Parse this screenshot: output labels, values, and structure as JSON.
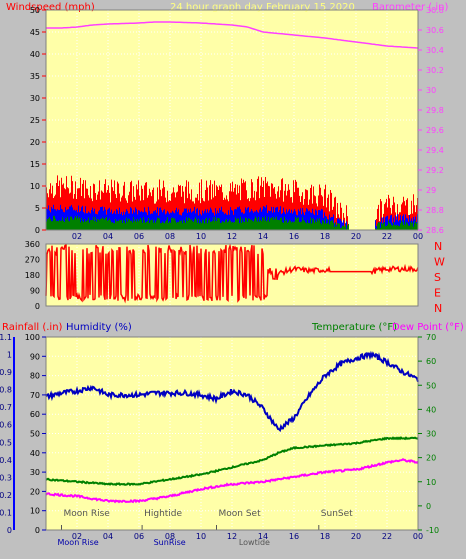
{
  "header": {
    "wind_title": "Windspeed (mph)",
    "center_title": "24 hour graph day   February 15 2020",
    "baro_title": "Barometer (.in)"
  },
  "colors": {
    "background": "#c0c0c0",
    "plot_background": "#ffffa8",
    "wind_color": "#ff0000",
    "gust_color": "#0000ff",
    "wind_low_color": "#008000",
    "barometer_color": "#ff40ff",
    "humidity_color": "#0000c0",
    "temperature_color": "#008000",
    "dewpoint_color": "#ff00ff",
    "rain_color": "#ff0000",
    "annotation_color": "#555555"
  },
  "x_ticks": [
    "02",
    "04",
    "06",
    "08",
    "10",
    "12",
    "14",
    "16",
    "18",
    "20",
    "22",
    "00"
  ],
  "direction_labels": [
    "N",
    "W",
    "S",
    "E",
    "N"
  ],
  "bottom": {
    "rain_title": "Rainfall (.in)",
    "humidity_title": "Humidity (%)",
    "temperature_title": "Temperature (°F)",
    "dewpoint_title": "Dew Point (°F)"
  },
  "annotations": [
    {
      "label": "Moon Rise",
      "hour": 1.0
    },
    {
      "label": "Hightide",
      "hour": 6.2
    },
    {
      "label": "Moon Set",
      "hour": 11.0
    },
    {
      "label": "SunSet",
      "hour": 17.6
    }
  ],
  "annotations_low": [
    {
      "label": "Moon Rise",
      "hour": 1.0
    },
    {
      "label": "Lowtide",
      "hour": 12.7
    },
    {
      "label": "SunRise",
      "hour": 7.2
    }
  ],
  "chart_data": [
    {
      "type": "line",
      "xlabel": "",
      "x_range": [
        0,
        24
      ],
      "y_left": {
        "label": "Windspeed (mph)",
        "range": [
          0,
          50
        ],
        "ticks": [
          0,
          5,
          10,
          15,
          20,
          25,
          30,
          35,
          40,
          45,
          50
        ]
      },
      "y_right": {
        "label": "Barometer (.in)",
        "range": [
          28.6,
          30.8
        ],
        "ticks": [
          "28.6",
          "28.8",
          "29",
          "29.2",
          "29.4",
          "29.6",
          "29.8",
          "30",
          "30.2",
          "30.4",
          "30.6",
          "30.8"
        ]
      },
      "series": [
        {
          "name": "Windspeed (mph)",
          "axis": "left",
          "hours": [
            0,
            2,
            4,
            6,
            8,
            10,
            12,
            14,
            16,
            18,
            19,
            20,
            21,
            22,
            23,
            24
          ],
          "values": [
            7,
            7,
            6,
            6,
            6,
            6,
            6,
            7,
            6,
            5,
            1,
            0,
            0,
            3,
            3,
            3
          ]
        },
        {
          "name": "Barometer (.in)",
          "axis": "right",
          "hours": [
            0,
            1,
            2,
            3,
            4,
            6,
            7,
            8,
            10,
            12,
            13,
            14,
            16,
            18,
            20,
            22,
            23,
            24
          ],
          "values": [
            30.62,
            30.62,
            30.63,
            30.65,
            30.66,
            30.67,
            30.68,
            30.68,
            30.67,
            30.65,
            30.63,
            30.58,
            30.55,
            30.52,
            30.48,
            30.44,
            30.43,
            30.42
          ]
        }
      ]
    },
    {
      "type": "scatter",
      "y_range": [
        0,
        360
      ],
      "ticks": [
        "0",
        "90",
        "180",
        "270",
        "360"
      ],
      "series": [
        {
          "name": "Wind direction",
          "hours": [
            0,
            2,
            4,
            6,
            8,
            10,
            12,
            13.5,
            14,
            15,
            16,
            17,
            18,
            19,
            20,
            21,
            22,
            23,
            24
          ],
          "values": [
            340,
            300,
            330,
            320,
            330,
            320,
            310,
            180,
            100,
            190,
            215,
            205,
            210,
            200,
            200,
            200,
            215,
            215,
            215
          ]
        }
      ]
    },
    {
      "type": "line",
      "x_range": [
        0,
        24
      ],
      "y_left": {
        "label": "Humidity (%)",
        "range": [
          0,
          100
        ],
        "ticks": [
          0,
          10,
          20,
          30,
          40,
          50,
          60,
          70,
          80,
          90,
          100
        ]
      },
      "y_left_rain": {
        "label": "Rainfall (.in)",
        "range": [
          0,
          1.1
        ],
        "ticks": [
          "0",
          "0.1",
          "0.2",
          "0.3",
          "0.4",
          "0.5",
          "0.6",
          "0.7",
          "0.8",
          "0.9",
          "1",
          "1.1"
        ]
      },
      "y_right": {
        "label": "Temperature (°F)",
        "range": [
          -10,
          70
        ],
        "ticks": [
          -10,
          0,
          10,
          20,
          30,
          40,
          50,
          60,
          70
        ]
      },
      "series": [
        {
          "name": "Humidity (%)",
          "axis": "left",
          "hours": [
            0,
            1,
            2,
            3,
            4,
            5,
            6,
            7,
            8,
            9,
            10,
            11,
            12,
            13,
            14,
            15,
            16,
            17,
            18,
            19,
            20,
            21,
            22,
            23,
            24
          ],
          "values": [
            69,
            71,
            72,
            74,
            70,
            70,
            70,
            71,
            71,
            71,
            70,
            68,
            72,
            70,
            63,
            52,
            58,
            70,
            80,
            86,
            89,
            91,
            87,
            82,
            78
          ]
        },
        {
          "name": "Temperature (°F)",
          "axis": "right",
          "hours": [
            0,
            2,
            4,
            6,
            8,
            10,
            12,
            14,
            15,
            16,
            18,
            20,
            22,
            23,
            24
          ],
          "values": [
            11,
            10,
            9,
            9,
            11,
            13,
            16,
            19,
            22,
            24,
            25,
            26,
            28,
            28,
            28
          ]
        },
        {
          "name": "Dew Point (°F)",
          "axis": "right",
          "hours": [
            0,
            2,
            4,
            6,
            8,
            10,
            12,
            14,
            15,
            16,
            18,
            20,
            22,
            23,
            24
          ],
          "values": [
            5,
            4,
            2,
            2,
            4,
            7,
            9,
            10,
            11,
            12,
            14,
            15,
            18,
            19,
            18
          ]
        }
      ]
    }
  ]
}
